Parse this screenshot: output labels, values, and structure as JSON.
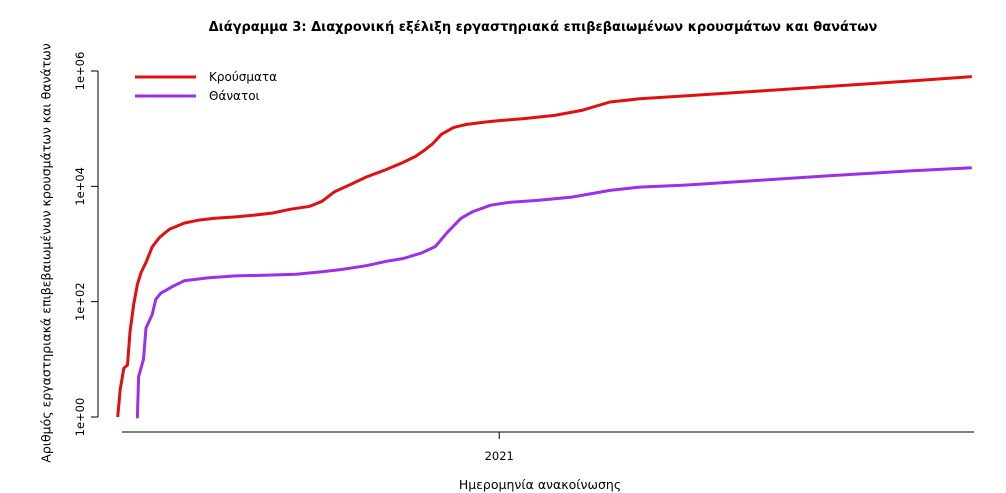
{
  "chart_data": {
    "type": "line",
    "title": "Διάγραμμα 3: Διαχρονική εξέλιξη εργαστηριακά επιβεβαιωμένων κρουσμάτων και θανάτων",
    "xlabel": "Ημερομηνία ανακοίνωσης",
    "ylabel": "Αριθμός εργαστηριακά επιβεβαιωμένων κρουσμάτων και θανάτων",
    "y_scale": "log10",
    "ylim": [
      1,
      1000000
    ],
    "yticks": [
      {
        "value": 1,
        "label": "1e+00"
      },
      {
        "value": 100,
        "label": "1e+02"
      },
      {
        "value": 10000,
        "label": "1e+04"
      },
      {
        "value": 1000000,
        "label": "1e+06"
      }
    ],
    "xlim": [
      "2020-02-10",
      "2022-01-25"
    ],
    "xticks": [
      {
        "value": "2021-01-01",
        "label": "2021"
      }
    ],
    "legend_position": "top-left",
    "grid": false,
    "series": [
      {
        "name": "Κρούσματα",
        "color": "#e01010",
        "points": [
          [
            "2020-02-26",
            1
          ],
          [
            "2020-02-28",
            3
          ],
          [
            "2020-03-02",
            7
          ],
          [
            "2020-03-05",
            8
          ],
          [
            "2020-03-07",
            30
          ],
          [
            "2020-03-10",
            90
          ],
          [
            "2020-03-13",
            200
          ],
          [
            "2020-03-16",
            320
          ],
          [
            "2020-03-20",
            480
          ],
          [
            "2020-03-25",
            890
          ],
          [
            "2020-03-31",
            1300
          ],
          [
            "2020-04-08",
            1800
          ],
          [
            "2020-04-20",
            2300
          ],
          [
            "2020-05-01",
            2580
          ],
          [
            "2020-05-15",
            2800
          ],
          [
            "2020-06-01",
            2950
          ],
          [
            "2020-06-15",
            3150
          ],
          [
            "2020-07-01",
            3450
          ],
          [
            "2020-07-15",
            4000
          ],
          [
            "2020-07-31",
            4500
          ],
          [
            "2020-08-10",
            5500
          ],
          [
            "2020-08-20",
            8000
          ],
          [
            "2020-09-01",
            10500
          ],
          [
            "2020-09-15",
            14500
          ],
          [
            "2020-10-01",
            19500
          ],
          [
            "2020-10-15",
            26000
          ],
          [
            "2020-10-25",
            33000
          ],
          [
            "2020-11-01",
            42000
          ],
          [
            "2020-11-08",
            55000
          ],
          [
            "2020-11-15",
            80000
          ],
          [
            "2020-11-25",
            105000
          ],
          [
            "2020-12-05",
            118000
          ],
          [
            "2020-12-20",
            130000
          ],
          [
            "2021-01-01",
            138000
          ],
          [
            "2021-01-20",
            148000
          ],
          [
            "2021-02-15",
            170000
          ],
          [
            "2021-03-10",
            210000
          ],
          [
            "2021-04-01",
            290000
          ],
          [
            "2021-04-25",
            330000
          ],
          [
            "2021-06-01",
            370000
          ],
          [
            "2021-08-01",
            450000
          ],
          [
            "2021-10-01",
            550000
          ],
          [
            "2021-12-01",
            670000
          ],
          [
            "2022-01-20",
            800000
          ]
        ]
      },
      {
        "name": "Θάνατοι",
        "color": "#9a30e8",
        "points": [
          [
            "2020-03-12",
            1
          ],
          [
            "2020-03-13",
            1
          ],
          [
            "2020-03-14",
            5
          ],
          [
            "2020-03-18",
            10
          ],
          [
            "2020-03-20",
            35
          ],
          [
            "2020-03-25",
            60
          ],
          [
            "2020-03-28",
            110
          ],
          [
            "2020-04-01",
            140
          ],
          [
            "2020-04-10",
            180
          ],
          [
            "2020-04-20",
            230
          ],
          [
            "2020-05-10",
            260
          ],
          [
            "2020-06-01",
            280
          ],
          [
            "2020-07-01",
            290
          ],
          [
            "2020-07-20",
            300
          ],
          [
            "2020-08-10",
            330
          ],
          [
            "2020-08-25",
            360
          ],
          [
            "2020-09-15",
            420
          ],
          [
            "2020-10-01",
            500
          ],
          [
            "2020-10-15",
            560
          ],
          [
            "2020-10-30",
            700
          ],
          [
            "2020-11-10",
            900
          ],
          [
            "2020-11-20",
            1600
          ],
          [
            "2020-12-01",
            2800
          ],
          [
            "2020-12-10",
            3600
          ],
          [
            "2020-12-25",
            4700
          ],
          [
            "2021-01-10",
            5300
          ],
          [
            "2021-02-01",
            5700
          ],
          [
            "2021-03-01",
            6500
          ],
          [
            "2021-04-01",
            8500
          ],
          [
            "2021-04-25",
            9700
          ],
          [
            "2021-06-01",
            10500
          ],
          [
            "2021-08-01",
            12800
          ],
          [
            "2021-10-01",
            15500
          ],
          [
            "2021-12-01",
            18500
          ],
          [
            "2022-01-20",
            21000
          ]
        ]
      }
    ]
  }
}
